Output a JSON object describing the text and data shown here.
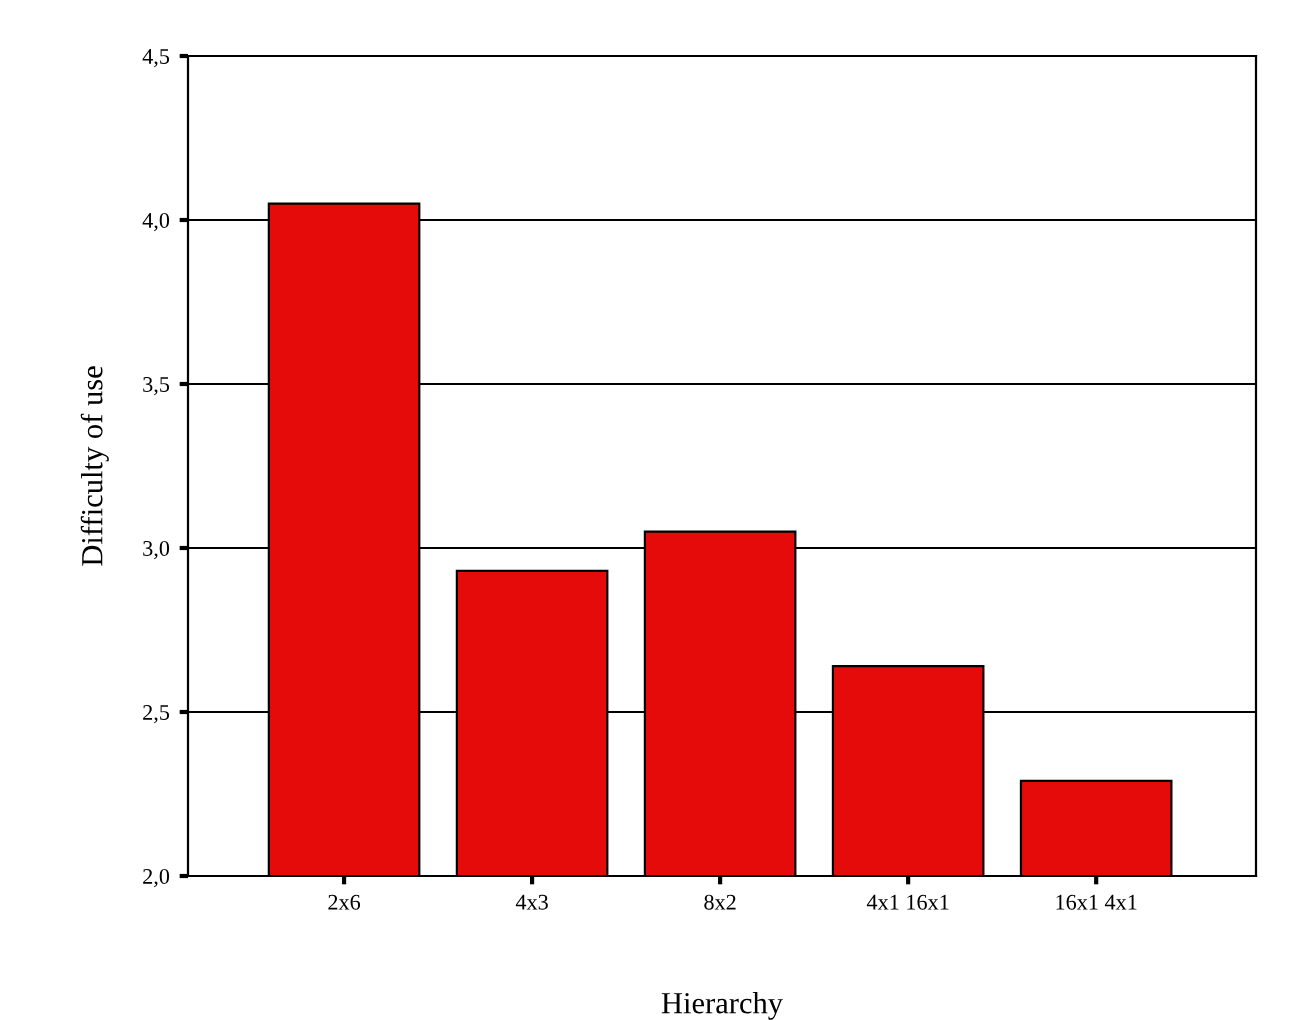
{
  "chart_data": {
    "type": "bar",
    "xlabel": "Hierarchy",
    "ylabel": "Difficulty of use",
    "categories": [
      "2x6",
      "4x3",
      "8x2",
      "4x1 16x1",
      "16x1 4x1"
    ],
    "values": [
      4.05,
      2.93,
      3.05,
      2.64,
      2.29
    ],
    "color": "#e60b0b",
    "ylim": [
      2.0,
      4.5
    ],
    "yticks": [
      {
        "value": 2.0,
        "label": "2,0"
      },
      {
        "value": 2.5,
        "label": "2,5"
      },
      {
        "value": 3.0,
        "label": "3,0"
      },
      {
        "value": 3.5,
        "label": "3,5"
      },
      {
        "value": 4.0,
        "label": "4,0"
      },
      {
        "value": 4.5,
        "label": "4,5"
      }
    ],
    "grid": "y",
    "legend": false
  }
}
